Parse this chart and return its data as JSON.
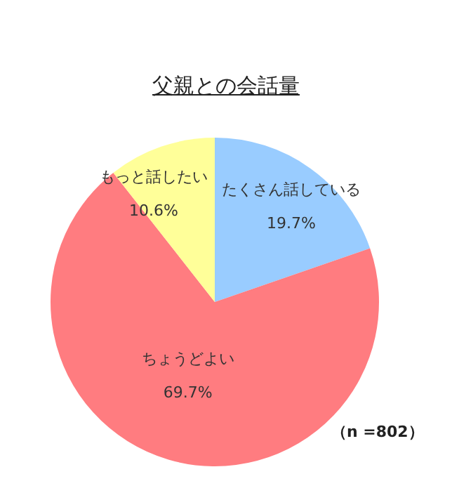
{
  "chart_data": {
    "type": "pie",
    "title": "父親との会話量",
    "categories": [
      "たくさん話している",
      "ちょうどよい",
      "もっと話したい"
    ],
    "values": [
      19.7,
      69.7,
      10.6
    ],
    "value_labels": [
      "19.7%",
      "69.7%",
      "10.6%"
    ],
    "colors": [
      "#99ccff",
      "#ff7c80",
      "#ffff99"
    ],
    "annotations": [
      "（n =802）"
    ],
    "legend": false
  }
}
